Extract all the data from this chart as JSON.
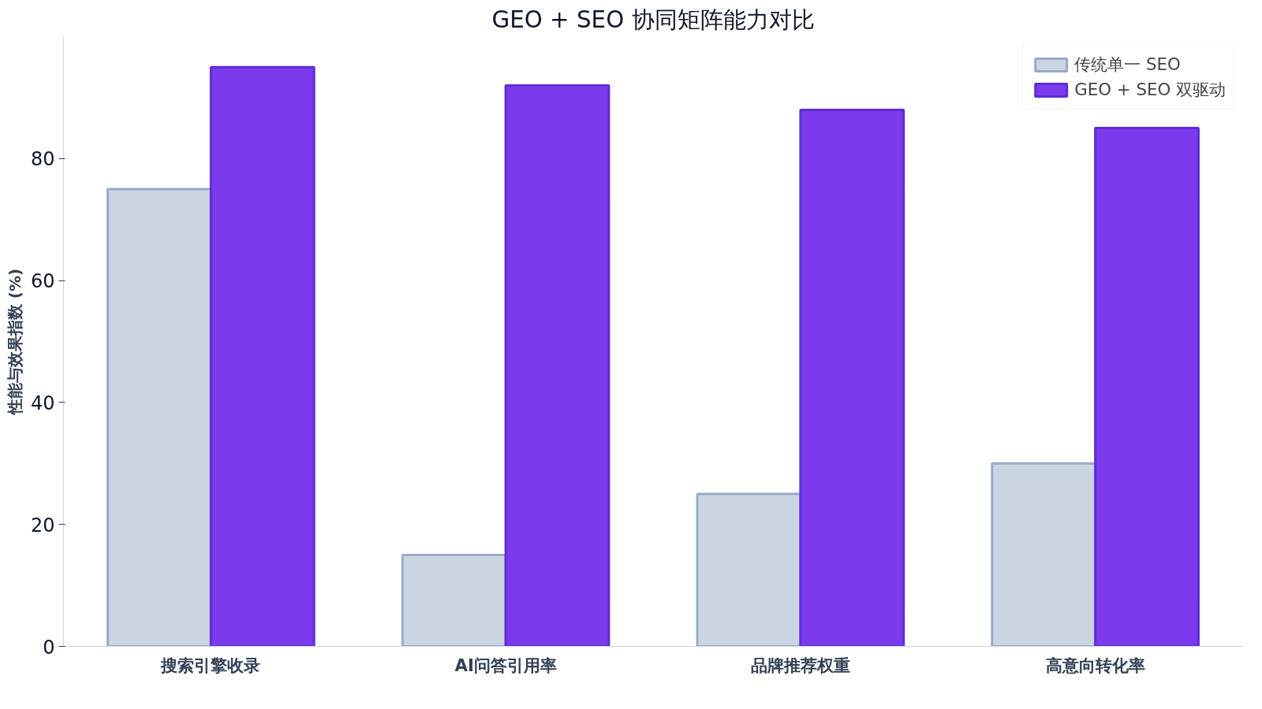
{
  "chart_data": {
    "type": "bar",
    "title": "GEO + SEO 协同矩阵能力对比",
    "ylabel": "性能与效果指数 (%)",
    "categories": [
      "搜索引擎收录",
      "AI问答引用率",
      "品牌推荐权重",
      "高意向转化率"
    ],
    "series": [
      {
        "name": "传统单一 SEO",
        "color": "#cbd5e1",
        "values": [
          75,
          15,
          25,
          30
        ]
      },
      {
        "name": "GEO + SEO 双驱动",
        "color": "#7c3aed",
        "values": [
          95,
          92,
          88,
          85
        ]
      }
    ],
    "ylim": [
      0,
      100
    ],
    "yticks": [
      0,
      20,
      40,
      60,
      80
    ],
    "grid": false,
    "legend": "top right"
  }
}
